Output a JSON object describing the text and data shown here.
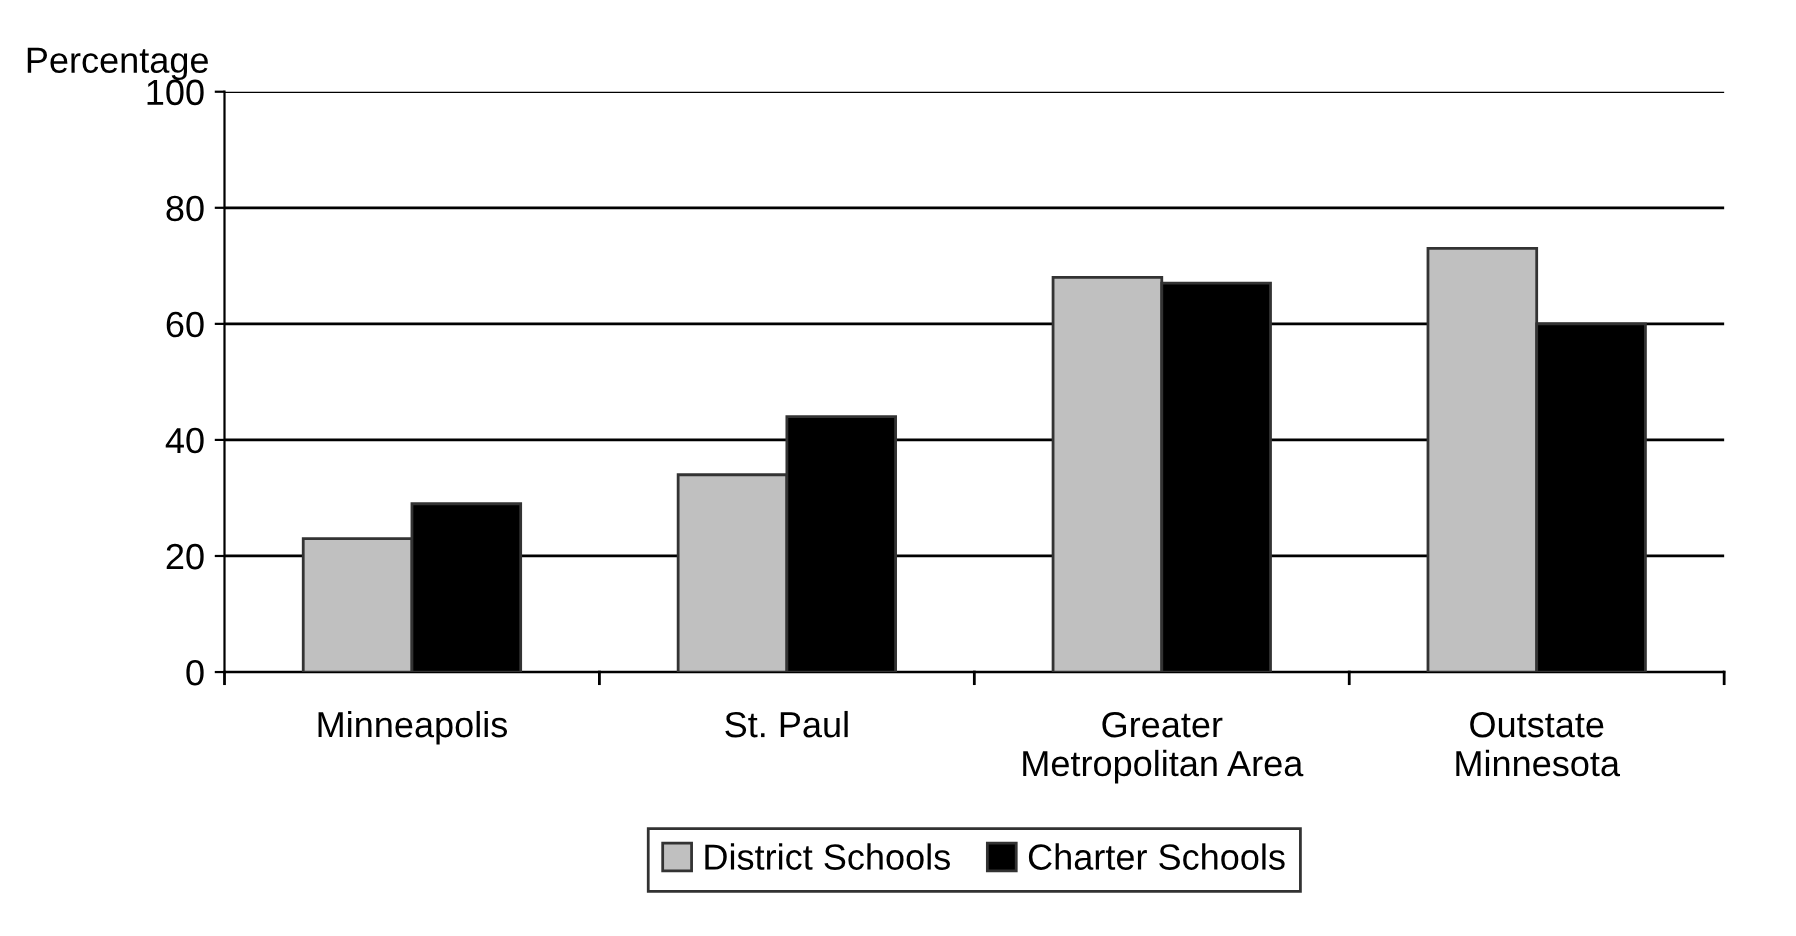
{
  "chart_data": {
    "type": "bar",
    "ylabel": "Percentage",
    "categories": [
      "Minneapolis",
      "St. Paul",
      "Greater\nMetropolitan Area",
      "Outstate\nMinnesota"
    ],
    "series": [
      {
        "name": "District Schools",
        "color": "#c0c0c0",
        "values": [
          23,
          34,
          68,
          73
        ]
      },
      {
        "name": "Charter Schools",
        "color": "#000000",
        "values": [
          29,
          44,
          67,
          60
        ]
      }
    ],
    "ylim": [
      0,
      100
    ],
    "yticks": [
      0,
      20,
      40,
      60,
      80,
      100
    ],
    "grid": "y",
    "legend": "bottom"
  }
}
